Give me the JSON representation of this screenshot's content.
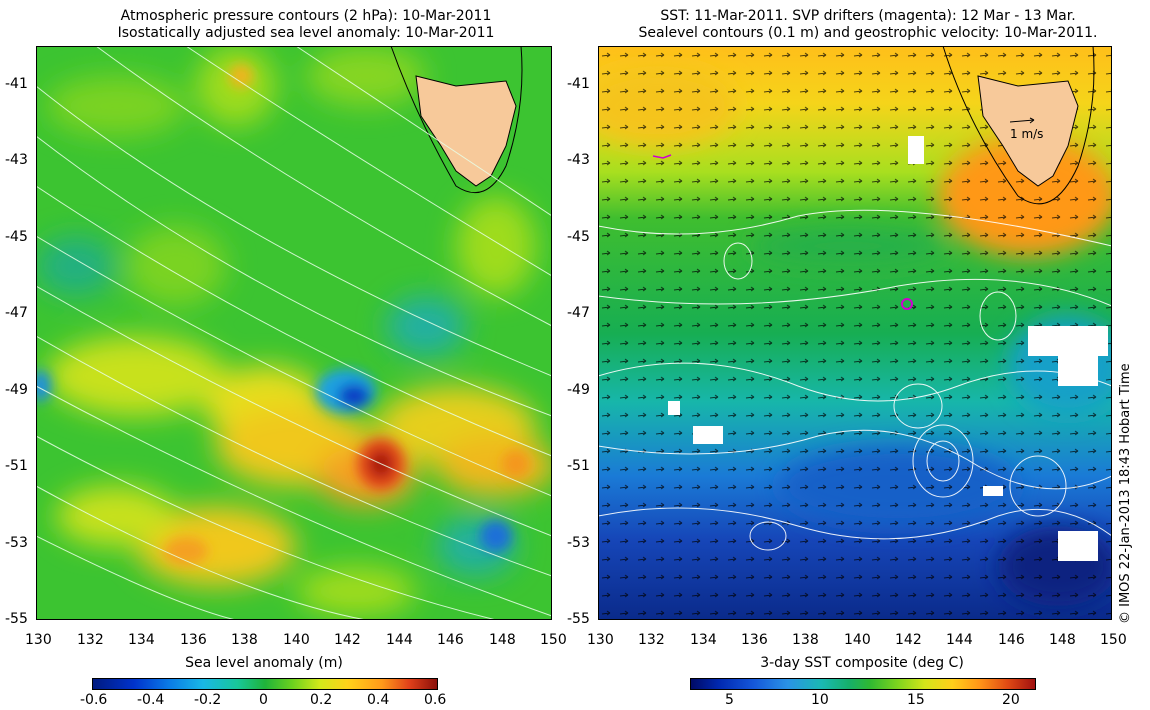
{
  "left_panel": {
    "title_line1": "Atmospheric pressure contours (2 hPa): 10-Mar-2011",
    "title_line2": "Isostatically adjusted sea level anomaly: 10-Mar-2011",
    "colorbar_label": "Sea level anomaly (m)",
    "colorbar_ticks": [
      "-0.6",
      "-0.4",
      "-0.2",
      "0",
      "0.2",
      "0.4",
      "0.6"
    ],
    "colors": {
      "low": "#001a80",
      "mid": "#1fb33a",
      "high": "#8a0f0a"
    }
  },
  "right_panel": {
    "title_line1": "SST: 11-Mar-2011. SVP drifters (magenta): 12 Mar - 13 Mar.",
    "title_line2": "Sealevel contours (0.1 m) and geostrophic velocity: 10-Mar-2011.",
    "colorbar_label": "3-day SST composite (deg C)",
    "colorbar_ticks": [
      "5",
      "10",
      "15",
      "20"
    ],
    "velocity_scale_label": "1 m/s",
    "colors": {
      "low": "#000a66",
      "mid": "#2fb832",
      "high": "#a01010",
      "drifter": "#d000d0",
      "land": "#f7c99a"
    }
  },
  "axes": {
    "y_ticks": [
      "-41",
      "-43",
      "-45",
      "-47",
      "-49",
      "-51",
      "-53",
      "-55"
    ],
    "x_ticks": [
      "130",
      "132",
      "134",
      "136",
      "138",
      "140",
      "142",
      "144",
      "146",
      "148",
      "150"
    ]
  },
  "credit": "© IMOS 22-Jan-2013 18:43 Hobart Time"
}
